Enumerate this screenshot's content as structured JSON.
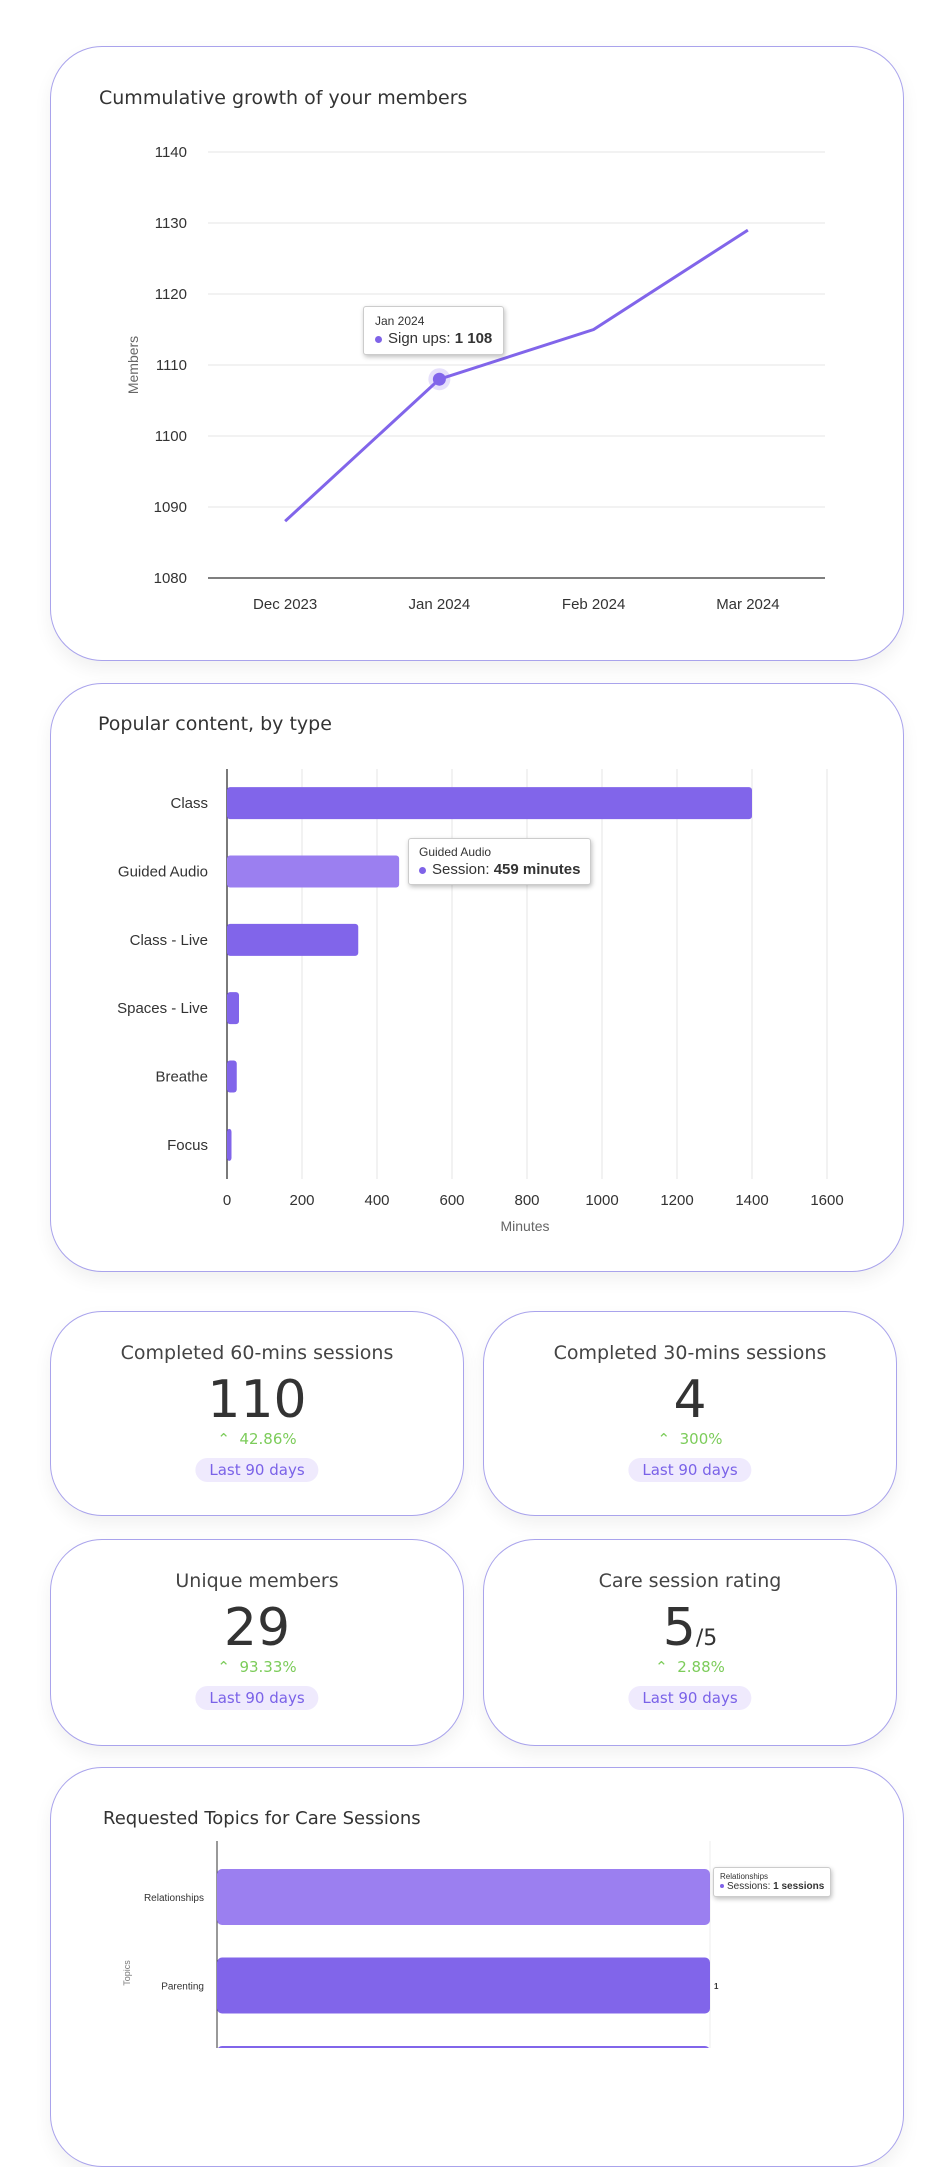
{
  "accent": "#8165ea",
  "growth": {
    "title": "Cummulative growth of your members",
    "tooltip": {
      "date": "Jan 2024",
      "label": "Sign ups:",
      "value": "1 108"
    }
  },
  "content": {
    "title": "Popular content, by type",
    "tooltip": {
      "category": "Guided Audio",
      "label": "Session:",
      "value": "459 minutes"
    }
  },
  "stats": [
    {
      "title": "Completed 60-mins sessions",
      "value": "110",
      "suffix": "",
      "delta": "42.86%",
      "badge": "Last 90 days"
    },
    {
      "title": "Completed 30-mins sessions",
      "value": "4",
      "suffix": "",
      "delta": "300%",
      "badge": "Last 90 days"
    },
    {
      "title": "Unique members",
      "value": "29",
      "suffix": "",
      "delta": "93.33%",
      "badge": "Last 90 days"
    },
    {
      "title": "Care session rating",
      "value": "5",
      "suffix": "/5",
      "delta": "2.88%",
      "badge": "Last 90 days"
    }
  ],
  "topics": {
    "title": "Requested Topics for Care Sessions",
    "tooltip": {
      "category": "Relationships",
      "label": "Sessions:",
      "value": "1 sessions"
    },
    "data_label": "1"
  },
  "chart_data": [
    {
      "type": "line",
      "title": "Cummulative growth of your members",
      "xlabel": "",
      "ylabel": "Members",
      "categories": [
        "Dec 2023",
        "Jan 2024",
        "Feb 2024",
        "Mar 2024"
      ],
      "series": [
        {
          "name": "Sign ups",
          "values": [
            1088,
            1108,
            1115,
            1129
          ]
        }
      ],
      "ylim": [
        1080,
        1140
      ],
      "yticks": [
        1080,
        1090,
        1100,
        1110,
        1120,
        1130,
        1140
      ],
      "grid": true
    },
    {
      "type": "bar",
      "orientation": "horizontal",
      "title": "Popular content, by type",
      "xlabel": "Minutes",
      "ylabel": "",
      "categories": [
        "Class",
        "Guided Audio",
        "Class - Live",
        "Spaces - Live",
        "Breathe",
        "Focus"
      ],
      "series": [
        {
          "name": "Session",
          "values": [
            1400,
            459,
            350,
            32,
            26,
            12
          ]
        }
      ],
      "xlim": [
        0,
        1600
      ],
      "xticks": [
        0,
        200,
        400,
        600,
        800,
        1000,
        1200,
        1400,
        1600
      ],
      "grid": true
    },
    {
      "type": "bar",
      "orientation": "horizontal",
      "title": "Requested Topics for Care Sessions",
      "xlabel": "",
      "ylabel": "Topics",
      "categories": [
        "Relationships",
        "Parenting"
      ],
      "series": [
        {
          "name": "Sessions",
          "values": [
            1,
            1
          ]
        }
      ],
      "xlim": [
        0,
        1
      ]
    }
  ]
}
